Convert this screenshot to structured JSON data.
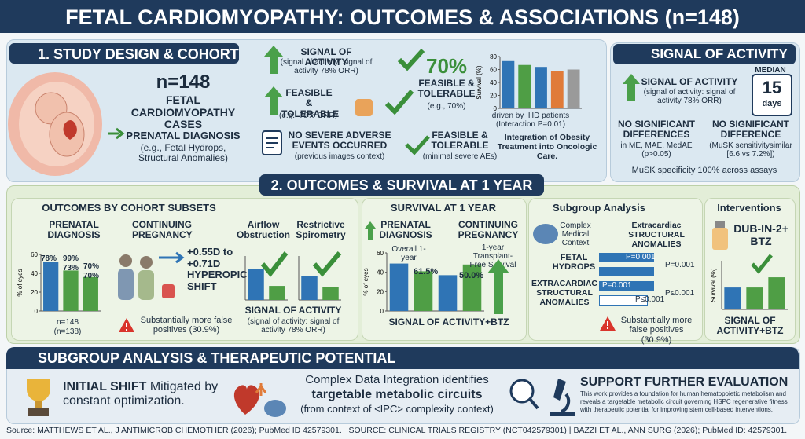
{
  "header": {
    "title": "FETAL CARDIOMYOPATHY: OUTCOMES & ASSOCIATIONS (n=148)"
  },
  "design": {
    "title": "1. STUDY DESIGN & COHORT",
    "n": "n=148",
    "cases": "FETAL CARDIOMYOPATHY CASES",
    "prenatal": "PRENATAL DIAGNOSIS",
    "prenatal_note": "(e.g., Fetal Hydrops, Structural Anomalies)",
    "items": [
      {
        "head": "SIGNAL OF ACTIVITY",
        "note": "(signal of activity: signal of activity 78% ORR)"
      },
      {
        "head": "FEASIBLE & TOLERABLE",
        "note": "(e.g., 78% ORR)"
      },
      {
        "head": "NO SEVERE ADVERSE EVENTS OCCURRED",
        "note": "(previous images context)"
      },
      {
        "big": "70%",
        "head": "FEASIBLE & TOLERABLE",
        "note": "(e.g., 70%)"
      },
      {
        "head": "FEASIBLE & TOLERABLE",
        "note": "(minimal severe AEs)"
      }
    ],
    "integration": "Integration of Obesity Treatment into Oncologic Care.",
    "chart": {
      "ylabel": "Survival (%)",
      "ylim": [
        0,
        80
      ],
      "yticks": [
        0,
        20,
        40,
        60,
        80
      ],
      "values": [
        73,
        67,
        64,
        58,
        60
      ],
      "colors": [
        "#2f74b5",
        "#4f9e45",
        "#2f74b5",
        "#e07b39",
        "#9a9a9a"
      ]
    },
    "caption": "driven by IHD patients (Interaction P=0.01)"
  },
  "signal": {
    "title": "SIGNAL OF ACTIVITY",
    "head": "SIGNAL OF ACTIVITY",
    "note": "(signal of activity: signal of activity 78% ORR)",
    "median": "MEDIAN",
    "days_n": "15",
    "days": "days",
    "nsd1": {
      "head": "NO SIGNIFICANT DIFFERENCES",
      "note": "in ME, MAE, MedAE (p>0.05)"
    },
    "nsd2": {
      "head": "NO SIGNIFICANT DIFFERENCE",
      "note": "(MuSK sensitivitysimilar [6.6 vs 7.2%])"
    },
    "spec": "MuSK specificity 100% across assays"
  },
  "outcomes": {
    "title": "2. OUTCOMES & SURVIVAL AT 1 YEAR",
    "cohort": {
      "title": "OUTCOMES BY COHORT SUBSETS",
      "prenatal": "PRENATAL DIAGNOSIS",
      "continuing": "CONTINUING PREGNANCY",
      "chart": {
        "ylabel": "% of eyes",
        "ylim": [
          0,
          60
        ],
        "yticks": [
          0,
          20,
          40,
          60
        ],
        "values": [
          52,
          43,
          36
        ],
        "colors": [
          "#2f74b5",
          "#4f9e45",
          "#4f9e45"
        ]
      },
      "labels": [
        "78%",
        "99%",
        "73%",
        "70%",
        "70%"
      ],
      "n": "n=148",
      "n2": "(n=138)",
      "shift": "+0.55D to +0.71D HYPEROPIC SHIFT",
      "false_pos": "Substantially more false positives (30.9%)",
      "airflow": "Airflow Obstruction",
      "restrictive": "Restrictive Spirometry",
      "airflow_chart": {
        "ylim": [
          0,
          100
        ],
        "values": [
          70,
          32
        ],
        "colors": [
          "#2f74b5",
          "#4f9e45"
        ]
      },
      "restrictive_chart": {
        "ylim": [
          0,
          100
        ],
        "values": [
          55,
          30
        ],
        "colors": [
          "#2f74b5",
          "#4f9e45"
        ]
      },
      "signal": "SIGNAL OF ACTIVITY",
      "signal_note": "(signal of activity: signal of activity 78% ORR)"
    },
    "survival": {
      "title": "SURVIVAL AT 1 YEAR",
      "prenatal": "PRENATAL DIAGNOSIS",
      "continuing": "CONTINUING PREGNANCY",
      "chart": {
        "ylabel": "% of eyes",
        "ylim": [
          0,
          60
        ],
        "yticks": [
          0,
          20,
          40,
          60
        ],
        "values": [
          49,
          41,
          37,
          48
        ],
        "colors": [
          "#2f74b5",
          "#4f9e45",
          "#2f74b5",
          "#4f9e45"
        ]
      },
      "overall": "Overall 1-year",
      "overall_val": "61.5%",
      "tfs": "1-year Transplant-Free Survival",
      "tfs_val": "50.0%",
      "signal": "SIGNAL OF ACTIVITY+BTZ"
    },
    "subgroup": {
      "title": "Subgroup Analysis",
      "context": "Complex Medical Context",
      "extra": "Extracardiac STRUCTURAL ANOMALIES",
      "hydrops": "FETAL HYDROPS",
      "p1": "P=0.001",
      "p2": "P=0.001",
      "structural": "EXTRACARDIAC STRUCTURAL ANOMALIES",
      "p3": "P=0.001",
      "p4": "P≤0.001",
      "p5": "P≤0.001",
      "false_pos": "Substantially more false positives (30.9%)"
    },
    "interventions": {
      "title": "Interventions",
      "drug": "DUB-IN-2+ BTZ",
      "chart": {
        "ylabel": "Survival (%)",
        "ylim": [
          0,
          100
        ],
        "values": [
          45,
          45,
          66
        ],
        "colors": [
          "#2f74b5",
          "#4f9e45",
          "#4f9e45"
        ]
      },
      "signal": "SIGNAL OF ACTIVITY+BTZ"
    }
  },
  "potential": {
    "title": "SUBGROUP ANALYSIS & THERAPEUTIC POTENTIAL",
    "shift_head": "INITIAL SHIFT",
    "shift_text": "Mitigated by constant optimization.",
    "integ": "Complex Data Integration identifies",
    "integ_bold": "targetable metabolic circuits",
    "integ_note": "(from context of <IPC> complexity context)",
    "support": "SUPPORT FURTHER EVALUATION",
    "support_text": "This work provides a foundation for human hematopoietic metabolism and reveals a targetable metabolic circuit governing HSPC regenerative fitness with therapeutic potential for improving stem cell-based interventions."
  },
  "footer": "Source: MATTHEWS ET AL., J ANTIMICROB CHEMOTHER (2026); PubMed ID 42579301.   SOURCE: CLINICAL TRIALS REGISTRY (NCT042579301) | BAZZI ET AL., ANN SURG (2026); PubMed ID: 42579301."
}
